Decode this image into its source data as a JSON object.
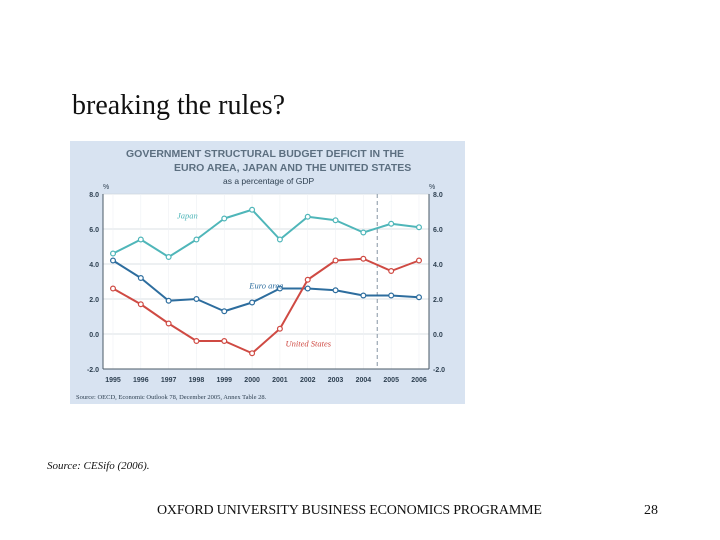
{
  "slide": {
    "title": "breaking the rules?",
    "source_note": "Source: CESifo (2006).",
    "footer": "OXFORD UNIVERSITY BUSINESS ECONOMICS PROGRAMME",
    "page_number": "28"
  },
  "chart_data": {
    "type": "line",
    "title_line1": "GOVERNMENT STRUCTURAL BUDGET DEFICIT IN THE",
    "title_line2": "EURO AREA, JAPAN AND THE UNITED STATES",
    "subtitle": "as a percentage of GDP",
    "ylabel_left": "%",
    "ylabel_right": "%",
    "x": [
      1995,
      1996,
      1997,
      1998,
      1999,
      2000,
      2001,
      2002,
      2003,
      2004,
      2005,
      2006
    ],
    "x_tick_labels": [
      "1995",
      "1996",
      "1997",
      "1998",
      "1999",
      "2000",
      "2001",
      "2002",
      "2003",
      "2004",
      "2005",
      "2006"
    ],
    "ylim": [
      -2.0,
      8.0
    ],
    "y_ticks": [
      -2.0,
      0.0,
      2.0,
      4.0,
      6.0,
      8.0
    ],
    "y_tick_labels": [
      "-2.0",
      "0.0",
      "2.0",
      "4.0",
      "6.0",
      "8.0"
    ],
    "forecast_divider_x": 2004.5,
    "grid": true,
    "series": [
      {
        "name": "Japan",
        "color": "#4fb6b9",
        "label_x": 1997.3,
        "label_y": 6.6,
        "values": [
          4.6,
          5.4,
          4.4,
          5.4,
          6.6,
          7.1,
          5.4,
          6.7,
          6.5,
          5.8,
          6.3,
          6.1
        ]
      },
      {
        "name": "Euro area",
        "color": "#2d6d9e",
        "label_x": 1999.9,
        "label_y": 2.6,
        "values": [
          4.2,
          3.2,
          1.9,
          2.0,
          1.3,
          1.8,
          2.6,
          2.6,
          2.5,
          2.2,
          2.2,
          2.1
        ]
      },
      {
        "name": "United States",
        "color": "#cf4a43",
        "label_x": 2001.2,
        "label_y": -0.7,
        "values": [
          2.6,
          1.7,
          0.6,
          -0.4,
          -0.4,
          -1.1,
          0.3,
          3.1,
          4.2,
          4.3,
          3.6,
          4.2
        ]
      }
    ],
    "source": "Source: OECD, Economic Outlook 78, December 2005, Annex Table 28."
  }
}
